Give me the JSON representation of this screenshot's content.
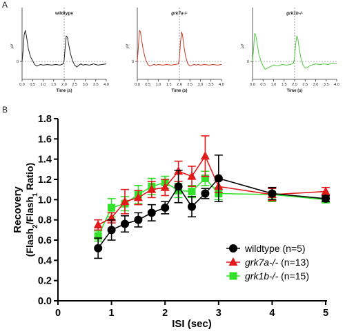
{
  "panels": {
    "a": "A",
    "b": "B"
  },
  "chart_data": [
    {
      "type": "line",
      "panel": "A",
      "title": "wildtype",
      "xlabel": "Time (s)",
      "ylabel": "µV",
      "x_ticks": [
        "0.0",
        "0.5",
        "1.0",
        "1.5",
        "2.0",
        "2.5",
        "3.0",
        "3.5",
        "4.0"
      ],
      "y_ticks": [
        "0"
      ],
      "xlim": [
        0,
        4.0
      ],
      "flash_times": [
        0.0,
        2.0
      ],
      "color": "#222222",
      "x": [
        0.0,
        0.05,
        0.1,
        0.15,
        0.2,
        0.3,
        0.4,
        0.5,
        0.6,
        0.7,
        0.8,
        0.9,
        1.0,
        1.2,
        1.4,
        1.6,
        1.8,
        1.95,
        2.0,
        2.05,
        2.1,
        2.15,
        2.2,
        2.3,
        2.4,
        2.5,
        2.6,
        2.7,
        2.8,
        2.9,
        3.0,
        3.2,
        3.4,
        3.6,
        3.8,
        4.0
      ],
      "values": [
        0.0,
        0.35,
        0.85,
        1.0,
        0.85,
        0.4,
        0.15,
        0.02,
        -0.1,
        -0.15,
        -0.12,
        -0.1,
        -0.12,
        -0.1,
        -0.12,
        -0.1,
        -0.12,
        -0.08,
        0.05,
        0.45,
        0.82,
        0.78,
        0.6,
        0.25,
        0.02,
        -0.12,
        -0.18,
        -0.12,
        -0.08,
        -0.12,
        -0.1,
        -0.12,
        -0.08,
        -0.12,
        -0.1,
        -0.08
      ]
    },
    {
      "type": "line",
      "panel": "A",
      "title": "grk7a-/-",
      "xlabel": "Time (s)",
      "ylabel": "µV",
      "x_ticks": [
        "0.0",
        "0.5",
        "1.0",
        "1.5",
        "2.0",
        "2.5",
        "3.0",
        "3.5",
        "4.0"
      ],
      "y_ticks": [
        "0"
      ],
      "xlim": [
        0,
        4.0
      ],
      "flash_times": [
        0.0,
        2.0
      ],
      "color": "#c0392b",
      "x": [
        0.0,
        0.05,
        0.1,
        0.15,
        0.2,
        0.3,
        0.4,
        0.5,
        0.6,
        0.7,
        0.8,
        0.9,
        1.0,
        1.2,
        1.4,
        1.6,
        1.8,
        1.95,
        2.0,
        2.05,
        2.1,
        2.15,
        2.2,
        2.3,
        2.4,
        2.5,
        2.6,
        2.7,
        2.8,
        2.9,
        3.0,
        3.2,
        3.4,
        3.6,
        3.8,
        4.0
      ],
      "values": [
        0.0,
        0.45,
        1.0,
        0.95,
        0.7,
        0.3,
        0.05,
        -0.1,
        -0.15,
        -0.12,
        -0.1,
        -0.12,
        -0.1,
        -0.12,
        -0.1,
        -0.12,
        -0.1,
        -0.08,
        0.1,
        0.6,
        0.95,
        0.85,
        0.55,
        0.15,
        -0.08,
        -0.15,
        -0.12,
        -0.1,
        -0.12,
        -0.1,
        -0.12,
        -0.1,
        -0.12,
        -0.1,
        -0.12,
        -0.1
      ]
    },
    {
      "type": "line",
      "panel": "A",
      "title": "grk1b-/-",
      "xlabel": "Time (s)",
      "ylabel": "µV",
      "x_ticks": [
        "0.0",
        "0.5",
        "1.0",
        "1.5",
        "2.0",
        "2.5",
        "3.0",
        "3.5",
        "4.0"
      ],
      "y_ticks": [
        "0"
      ],
      "xlim": [
        0,
        4.0
      ],
      "flash_times": [
        0.0,
        2.0
      ],
      "color": "#4ecb3c",
      "x": [
        0.0,
        0.05,
        0.1,
        0.15,
        0.2,
        0.3,
        0.4,
        0.5,
        0.6,
        0.7,
        0.8,
        0.9,
        1.0,
        1.2,
        1.4,
        1.6,
        1.8,
        1.95,
        2.0,
        2.05,
        2.1,
        2.15,
        2.2,
        2.3,
        2.4,
        2.5,
        2.6,
        2.7,
        2.8,
        2.9,
        3.0,
        3.2,
        3.4,
        3.6,
        3.8,
        4.0
      ],
      "values": [
        0.0,
        0.4,
        0.9,
        0.85,
        0.65,
        0.25,
        0.0,
        -0.15,
        -0.25,
        -0.22,
        -0.18,
        -0.15,
        -0.12,
        -0.15,
        -0.1,
        -0.12,
        -0.1,
        -0.05,
        0.15,
        0.55,
        0.82,
        0.75,
        0.5,
        0.1,
        -0.12,
        -0.22,
        -0.2,
        -0.15,
        -0.12,
        -0.1,
        -0.08,
        -0.1,
        -0.08,
        -0.1,
        -0.05,
        -0.08
      ]
    },
    {
      "type": "line",
      "panel": "B",
      "xlabel": "ISI (sec)",
      "ylabel_lines": [
        "Recovery",
        "(Flash2/Flash1 Ratio)"
      ],
      "ylim": [
        0,
        1.8
      ],
      "xlim": [
        0,
        5
      ],
      "x_ticks": [
        0,
        1,
        2,
        3,
        4,
        5
      ],
      "y_ticks": [
        0.0,
        0.2,
        0.4,
        0.6,
        0.8,
        1.0,
        1.2,
        1.4,
        1.6,
        1.8
      ],
      "y_tick_labels": [
        "0.0",
        "0.2",
        "0.4",
        "0.6",
        "0.8",
        "1.0",
        "1.2",
        "1.4",
        "1.6",
        "1.8"
      ],
      "grid": false,
      "legend_position": "bottom-right",
      "series": [
        {
          "name": "wildtype",
          "legend_suffix": " (n=5)",
          "italic": false,
          "color": "#000000",
          "marker": "circle",
          "x": [
            0.75,
            1.0,
            1.25,
            1.5,
            1.75,
            2.0,
            2.25,
            2.5,
            2.75,
            3.0,
            4.0,
            5.0
          ],
          "values": [
            0.52,
            0.7,
            0.76,
            0.8,
            0.87,
            0.92,
            1.13,
            0.93,
            1.06,
            1.21,
            1.06,
            1.01
          ],
          "err": [
            0.1,
            0.1,
            0.08,
            0.07,
            0.08,
            0.06,
            0.16,
            0.1,
            0.05,
            0.23,
            0.06,
            0.03
          ]
        },
        {
          "name": "grk7a-/-",
          "legend_suffix": " (n=13)",
          "italic": true,
          "color": "#e0191b",
          "marker": "triangle",
          "x": [
            0.75,
            1.0,
            1.25,
            1.5,
            1.75,
            2.0,
            2.25,
            2.5,
            2.75,
            3.0,
            4.0,
            5.0
          ],
          "values": [
            0.75,
            0.82,
            0.98,
            1.02,
            1.1,
            1.12,
            1.28,
            1.23,
            1.43,
            1.13,
            1.05,
            1.08
          ],
          "err": [
            0.05,
            0.05,
            0.12,
            0.07,
            0.08,
            0.08,
            0.1,
            0.1,
            0.2,
            0.06,
            0.06,
            0.04
          ]
        },
        {
          "name": "grk1b-/-",
          "legend_suffix": " (n=15)",
          "italic": true,
          "color": "#33e02a",
          "marker": "square",
          "x": [
            0.75,
            1.0,
            1.25,
            1.5,
            1.75,
            2.0,
            2.25,
            2.5,
            2.75,
            3.0,
            4.0,
            5.0
          ],
          "values": [
            0.64,
            0.92,
            0.96,
            1.05,
            1.13,
            1.17,
            1.09,
            1.08,
            1.21,
            1.06,
            1.05,
            1.0
          ],
          "err": [
            0.05,
            0.09,
            0.07,
            0.09,
            0.08,
            0.06,
            0.07,
            0.06,
            0.07,
            0.06,
            0.07,
            0.03
          ]
        }
      ]
    }
  ]
}
